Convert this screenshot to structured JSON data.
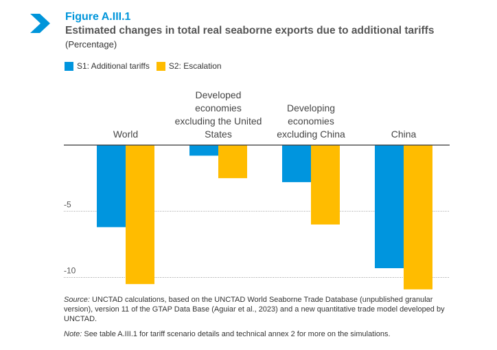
{
  "figure_label": "Figure A.III.1",
  "colors": {
    "s1": "#0095de",
    "s2": "#ffbc00",
    "accent": "#0095da"
  },
  "chart_data": {
    "type": "bar",
    "title": "Estimated changes in total real seaborne exports due to additional tariffs",
    "subtitle": "(Percentage)",
    "categories": [
      "World",
      "Developed economies excluding the United States",
      "Developing economies excluding China",
      "China"
    ],
    "category_lines": [
      [
        "World"
      ],
      [
        "Developed",
        "economies",
        "excluding the United",
        "States"
      ],
      [
        "Developing",
        "economies",
        "excluding China"
      ],
      [
        "China"
      ]
    ],
    "series": [
      {
        "name": "S1: Additional tariffs",
        "values": [
          -6.2,
          -0.8,
          -2.8,
          -9.3
        ]
      },
      {
        "name": "S2: Escalation",
        "values": [
          -10.5,
          -2.5,
          -6.0,
          -10.9
        ]
      }
    ],
    "yticks": [
      -5,
      -10
    ],
    "ylim": [
      -11,
      0
    ],
    "legend": "top-left",
    "grid": "dotted horizontal"
  },
  "source_label": "Source:",
  "source_text": " UNCTAD calculations, based on the UNCTAD World Seaborne Trade Database (unpublished granular version), version 11 of the GTAP Data Base (Aguiar et al., 2023) and a new quantitative trade model developed by UNCTAD.",
  "note_label": "Note:",
  "note_text": " See table A.III.1 for tariff scenario details and technical annex 2 for more on the simulations."
}
